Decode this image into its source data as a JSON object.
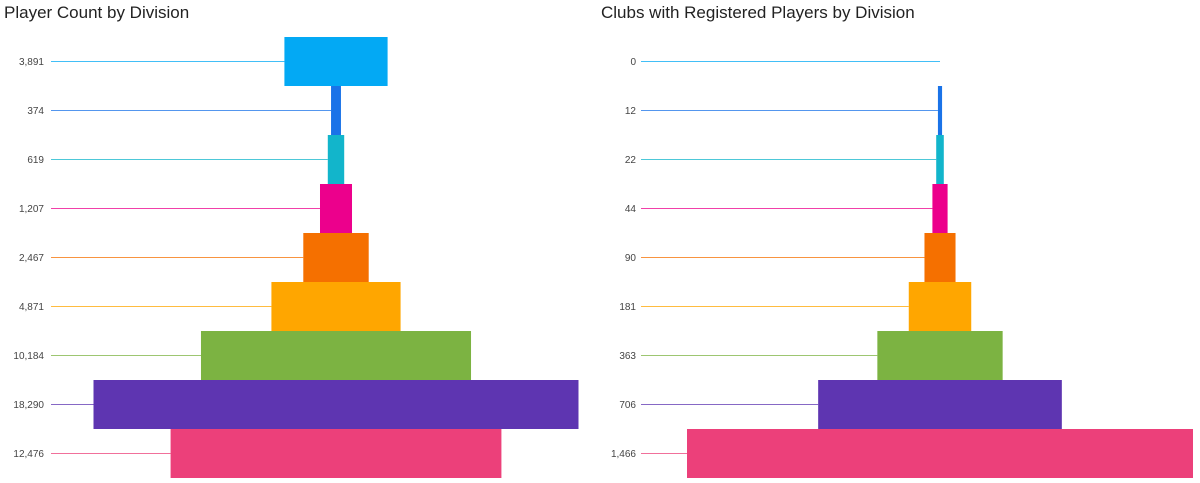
{
  "chart_data": [
    {
      "type": "bar",
      "title": "Player Count by Division",
      "values": [
        3891,
        374,
        619,
        1207,
        2467,
        4871,
        10184,
        18290,
        12476
      ],
      "labels": [
        "3,891",
        "374",
        "619",
        "1,207",
        "2,467",
        "4,871",
        "10,184",
        "18,290",
        "12,476"
      ],
      "colors": [
        "#03a9f4",
        "#1a73e8",
        "#12b5cb",
        "#ec008c",
        "#f57000",
        "#ffa600",
        "#7cb342",
        "#5e35b1",
        "#ec407a"
      ]
    },
    {
      "type": "bar",
      "title": "Clubs with Registered Players by Division",
      "values": [
        0,
        12,
        22,
        44,
        90,
        181,
        363,
        706,
        1466
      ],
      "labels": [
        "0",
        "12",
        "22",
        "44",
        "90",
        "181",
        "363",
        "706",
        "1,466"
      ],
      "colors": [
        "#03a9f4",
        "#1a73e8",
        "#12b5cb",
        "#ec008c",
        "#f57000",
        "#ffa600",
        "#7cb342",
        "#5e35b1",
        "#ec407a"
      ]
    }
  ]
}
